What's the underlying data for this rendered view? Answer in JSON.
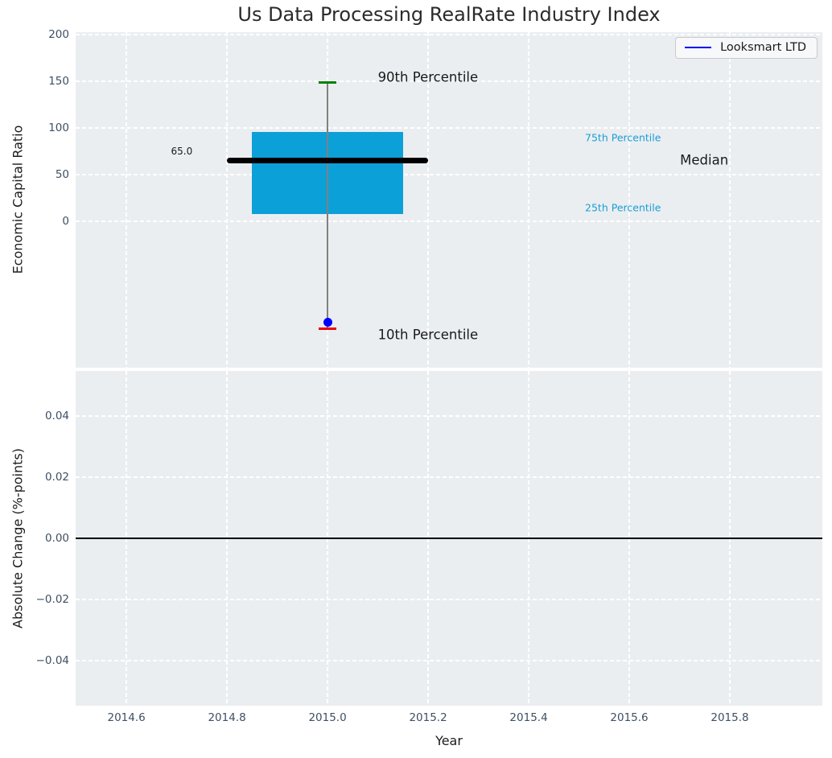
{
  "title": "Us Data Processing RealRate Industry Index",
  "legend": {
    "label": "Looksmart LTD"
  },
  "colors": {
    "plot_background": "#ebeef1",
    "grid": "#ffffff",
    "tick_label": "#3e4f63",
    "box_fill": "#0ca0d8",
    "median_line": "#000000",
    "whisker": "#808080",
    "p90_cap": "#008000",
    "p10_cap": "#ee0000",
    "company_point": "#0000ff",
    "legend_line": "#0000ff",
    "percentile_label": "#189fd5",
    "zero_line": "#000000",
    "annotation_black": "#1a1a1a"
  },
  "chart_data": [
    {
      "type": "box",
      "subplot": "top",
      "title": "Us Data Processing RealRate Industry Index",
      "ylabel": "Economic Capital Ratio",
      "xlabel": "Year",
      "xlim": [
        2014.499,
        2015.984
      ],
      "ylim": [
        -157,
        203
      ],
      "grid": "white-dashed",
      "yticks": {
        "values": [
          200,
          150,
          100,
          50,
          0
        ],
        "labels": [
          "200",
          "150",
          "100",
          "50",
          "0"
        ]
      },
      "xticks": {
        "values": [
          2014.6,
          2014.8,
          2015.0,
          2015.2,
          2015.4,
          2015.6,
          2015.8
        ],
        "labels": [
          "2014.6",
          "2014.8",
          "2015.0",
          "2015.2",
          "2015.4",
          "2015.6",
          "2015.8"
        ]
      },
      "box": {
        "x": 2015.0,
        "p10": -115,
        "p25": 8,
        "median": 65.0,
        "p75": 96,
        "p90": 149,
        "box_width": 0.3,
        "median_width": 0.4,
        "cap_width": 0.034
      },
      "series": [
        {
          "name": "Looksmart LTD",
          "type": "point",
          "points": [
            {
              "x": 2015.0,
              "y": -108
            }
          ]
        }
      ],
      "annotations": [
        {
          "text": "90th Percentile",
          "x": 2015.1,
          "y": 155,
          "color": "black",
          "size": 16.5,
          "align": "left"
        },
        {
          "text": "10th Percentile",
          "x": 2015.1,
          "y": -122,
          "color": "black",
          "size": 16.5,
          "align": "left"
        },
        {
          "text": "75th Percentile",
          "x": 2015.512,
          "y": 90,
          "color": "cyan",
          "size": 12.5,
          "align": "left"
        },
        {
          "text": "25th Percentile",
          "x": 2015.512,
          "y": 15,
          "color": "cyan",
          "size": 12.5,
          "align": "left"
        },
        {
          "text": "Median",
          "x": 2015.701,
          "y": 66,
          "color": "black",
          "size": 16.5,
          "align": "left"
        },
        {
          "text": "65.0",
          "x": 2014.71,
          "y": 75,
          "color": "black",
          "size": 12,
          "align": "center"
        }
      ],
      "legend": {
        "label": "Looksmart LTD",
        "position": "upper right"
      }
    },
    {
      "type": "line",
      "subplot": "bottom",
      "ylabel": "Absolute Change (%-points)",
      "ylim": [
        -0.0547,
        0.0547
      ],
      "grid": "white-dashed",
      "yticks": {
        "values": [
          0.04,
          0.02,
          0,
          -0.02,
          -0.04
        ],
        "labels": [
          "0.04",
          "0.02",
          "0.00",
          "−0.02",
          "−0.04"
        ]
      },
      "zero_line": 0.0,
      "series": []
    }
  ]
}
